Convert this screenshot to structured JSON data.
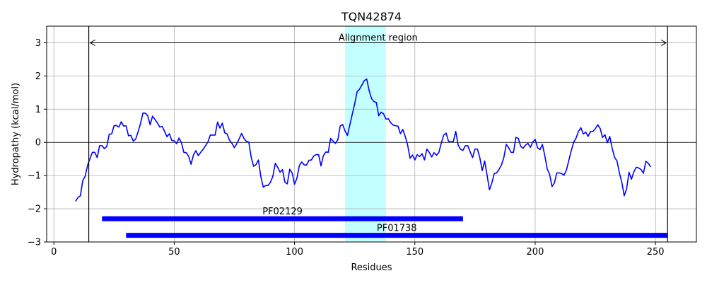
{
  "chart_data": {
    "type": "line",
    "title": "TQN42874",
    "xlabel": "Residues",
    "ylabel": "Hydropathy (kcal/mol)",
    "xlim": [
      -3,
      267
    ],
    "ylim": [
      -3,
      3.5
    ],
    "xticks": [
      0,
      50,
      100,
      150,
      200,
      250
    ],
    "yticks": [
      -3,
      -2,
      -1,
      0,
      1,
      2,
      3
    ],
    "grid": true,
    "colors": {
      "line": "#0000ff",
      "highlight": "#c4ffff",
      "domain": "#0000ff",
      "frame": "#000000",
      "grid": "#b0b0b0"
    },
    "zero_line": 0,
    "alignment_region": {
      "label": "Alignment region",
      "start": 14.5,
      "end": 255,
      "arrow_y": 3
    },
    "highlight_region": {
      "start": 121,
      "end": 138
    },
    "domains": [
      {
        "name": "PF02129",
        "start": 20,
        "end": 170,
        "y": -2.3
      },
      {
        "name": "PF01738",
        "start": 30,
        "end": 255,
        "y": -2.8
      }
    ],
    "series": [
      {
        "x_start": 9,
        "values": [
          -1.78,
          -1.66,
          -1.61,
          -1.15,
          -1.02,
          -0.69,
          -0.49,
          -0.3,
          -0.3,
          -0.46,
          -0.1,
          -0.1,
          -0.19,
          -0.12,
          0.25,
          0.25,
          0.5,
          0.51,
          0.46,
          0.62,
          0.49,
          0.5,
          0.2,
          0.21,
          0.04,
          0.1,
          0.32,
          0.57,
          0.88,
          0.88,
          0.8,
          0.53,
          0.79,
          0.69,
          0.59,
          0.46,
          0.48,
          0.33,
          0.17,
          0.26,
          0.06,
          0.05,
          -0.04,
          0.13,
          -0.01,
          -0.3,
          -0.31,
          -0.42,
          -0.66,
          -0.38,
          -0.25,
          -0.4,
          -0.3,
          -0.21,
          -0.1,
          0.01,
          0.22,
          0.22,
          0.22,
          0.61,
          0.43,
          0.58,
          0.29,
          0.25,
          0.06,
          -0.03,
          -0.16,
          -0.04,
          0.11,
          0.27,
          0.12,
          0.03,
          0.01,
          -0.45,
          -0.72,
          -0.67,
          -0.53,
          -1.03,
          -1.35,
          -1.3,
          -1.3,
          -1.2,
          -1.02,
          -0.63,
          -0.75,
          -0.9,
          -0.82,
          -1.2,
          -1.25,
          -0.81,
          -0.92,
          -1.26,
          -1.08,
          -0.7,
          -0.59,
          -0.68,
          -0.68,
          -0.54,
          -0.53,
          -0.41,
          -0.37,
          -0.37,
          -0.71,
          -0.4,
          -0.29,
          -0.3,
          0.12,
          0.04,
          -0.03,
          0.08,
          0.5,
          0.54,
          0.34,
          0.21,
          0.53,
          0.85,
          1.16,
          1.53,
          1.6,
          1.73,
          1.86,
          1.91,
          1.56,
          1.32,
          1.23,
          1.2,
          0.8,
          0.91,
          0.86,
          0.7,
          0.71,
          0.59,
          0.52,
          0.5,
          0.49,
          0.26,
          0.39,
          0.18,
          -0.08,
          -0.48,
          -0.38,
          -0.53,
          -0.37,
          -0.43,
          -0.34,
          -0.53,
          -0.2,
          -0.3,
          -0.44,
          -0.31,
          -0.39,
          -0.3,
          -0.02,
          0.22,
          0.28,
          0.03,
          0.02,
          0.03,
          0.33,
          -0.08,
          -0.21,
          -0.24,
          -0.1,
          -0.1,
          -0.29,
          -0.46,
          -0.2,
          -0.2,
          -0.46,
          -0.85,
          -0.56,
          -0.98,
          -1.43,
          -1.22,
          -0.94,
          -0.92,
          -0.81,
          -0.68,
          -0.45,
          -0.06,
          -0.16,
          -0.3,
          -0.3,
          0.15,
          0.12,
          -0.12,
          -0.18,
          -0.08,
          -0.03,
          -0.15,
          0.01,
          0.09,
          -0.16,
          -0.22,
          -0.06,
          -0.4,
          -0.8,
          -0.96,
          -1.33,
          -1.22,
          -0.92,
          -0.92,
          -0.94,
          -0.99,
          -0.83,
          -0.54,
          -0.25,
          0.0,
          0.13,
          0.33,
          0.44,
          0.25,
          0.31,
          0.18,
          0.33,
          0.33,
          0.41,
          0.53,
          0.42,
          0.15,
          0.23,
          -0.01,
          0.18,
          -0.18,
          -0.45,
          -0.56,
          -0.92,
          -1.2,
          -1.61,
          -1.4,
          -0.9,
          -1.11,
          -0.89,
          -0.75,
          -0.77,
          -0.82,
          -0.93,
          -0.57,
          -0.63,
          -0.74
        ]
      }
    ]
  }
}
